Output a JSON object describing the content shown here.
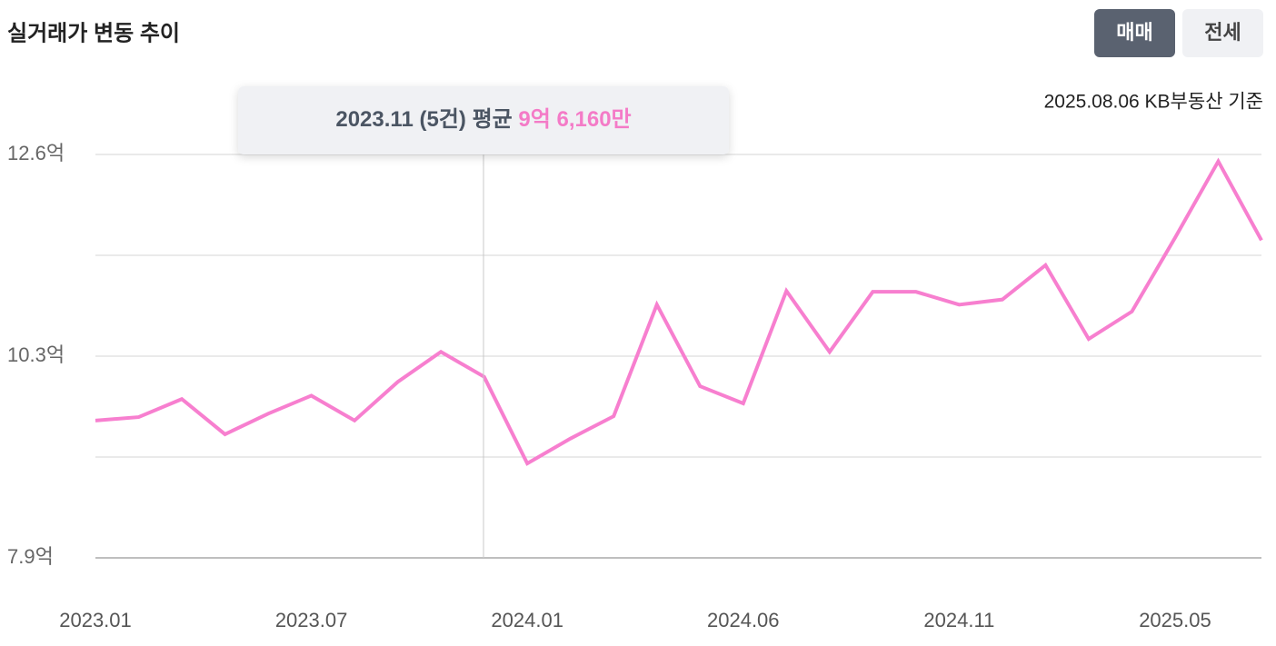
{
  "header": {
    "title": "실거래가 변동 추이",
    "buttons": [
      "매매",
      "전세"
    ],
    "note": "2025.08.06 KB부동산 기준"
  },
  "tooltip": {
    "period": "2023.11",
    "count": "(5건)",
    "label": "평균",
    "value": "9억 6,160만"
  },
  "chart_data": {
    "type": "line",
    "categories": [
      "2023.01",
      null,
      null,
      null,
      null,
      "2023.07",
      null,
      null,
      null,
      null,
      "2024.01",
      null,
      null,
      null,
      null,
      "2024.06",
      null,
      null,
      null,
      null,
      "2024.11",
      null,
      null,
      null,
      null,
      "2025.05",
      null,
      null
    ],
    "series": [
      {
        "name": "매매",
        "color": "#f77fcf",
        "values": [
          9.5,
          9.54,
          9.75,
          9.34,
          9.58,
          9.79,
          9.5,
          9.95,
          10.3,
          10.01,
          9.0,
          9.29,
          9.55,
          10.85,
          9.9,
          9.7,
          11.01,
          10.3,
          11.0,
          11.0,
          10.85,
          10.91,
          11.31,
          10.45,
          10.77,
          11.63,
          12.52,
          11.6
        ]
      }
    ],
    "ylim": [
      7.9,
      12.6
    ],
    "yticks": [
      {
        "value": 7.9,
        "label": "7.9억"
      },
      {
        "value": 10.25,
        "label": "10.3억"
      },
      {
        "value": 12.6,
        "label": "12.6억"
      }
    ],
    "minor_yticks": [
      9.075,
      11.425
    ],
    "grid": true
  }
}
